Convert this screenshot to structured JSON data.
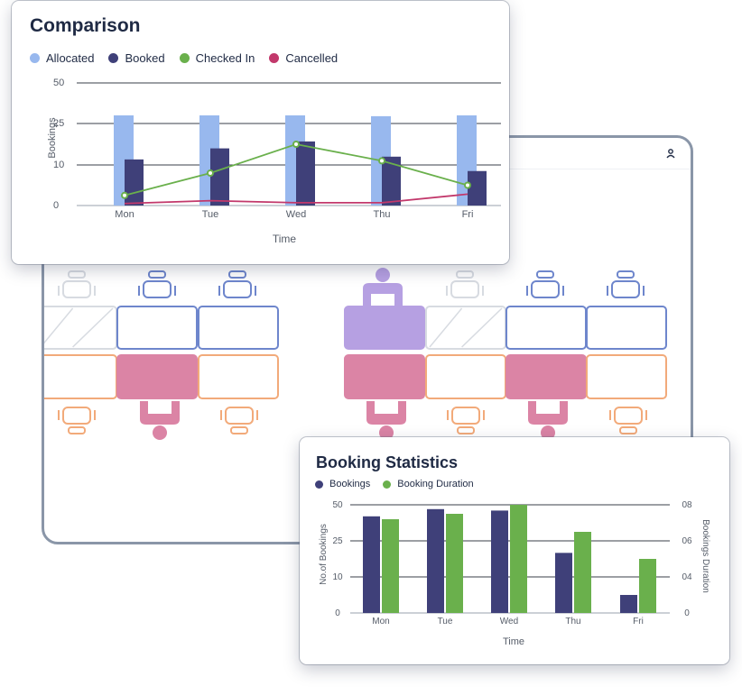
{
  "colors": {
    "allocated": "#98b8ee",
    "booked": "#3f4079",
    "checked_in": "#6ab04c",
    "cancelled": "#c2386b",
    "bookings": "#3f4079",
    "duration": "#6ab04c",
    "desk_blue": "#6e86cc",
    "desk_orange": "#f2aa7a",
    "desk_pink": "#db84a5",
    "desk_purple": "#b6a0e2",
    "desk_grey": "#d7dbe1"
  },
  "floor_plan": {
    "profile_icon": "user-icon"
  },
  "comparison": {
    "title": "Comparison",
    "legend": [
      "Allocated",
      "Booked",
      "Checked In",
      "Cancelled"
    ],
    "chart_data": {
      "type": "bar",
      "categories": [
        "Mon",
        "Tue",
        "Wed",
        "Thu",
        "Fri"
      ],
      "series": [
        {
          "name": "Allocated",
          "type": "bar",
          "values": [
            30,
            30,
            30,
            29.5,
            30
          ]
        },
        {
          "name": "Booked",
          "type": "bar",
          "values": [
            12,
            16,
            18.5,
            13,
            8.5
          ]
        },
        {
          "name": "Checked In",
          "type": "line",
          "values": [
            2.5,
            8,
            17.5,
            11.5,
            5
          ]
        },
        {
          "name": "Cancelled",
          "type": "line",
          "values": [
            0.5,
            1.2,
            0.7,
            0.7,
            2.8
          ]
        }
      ],
      "yticks": [
        "0",
        "10",
        "25",
        "50"
      ],
      "ylabel": "Bookings",
      "xlabel": "Time",
      "grid": true,
      "legend_position": "top-left"
    }
  },
  "booking_stats": {
    "title": "Booking Statistics",
    "legend": [
      "Bookings",
      "Booking Duration"
    ],
    "chart_data": {
      "type": "bar",
      "categories": [
        "Mon",
        "Tue",
        "Wed",
        "Thu",
        "Fri"
      ],
      "series": [
        {
          "name": "Bookings",
          "axis": "left",
          "values": [
            42,
            47,
            46,
            20,
            5
          ]
        },
        {
          "name": "Booking Duration",
          "axis": "right",
          "values": [
            7.2,
            7.5,
            8,
            6.5,
            5
          ]
        }
      ],
      "yticks_left": [
        "0",
        "10",
        "25",
        "50"
      ],
      "yticks_right": [
        "0",
        "04",
        "06",
        "08"
      ],
      "ylabel_left": "No.of Bookings",
      "ylabel_right": "Bookings Duration",
      "xlabel": "Time",
      "grid": true,
      "legend_position": "top-left"
    }
  }
}
